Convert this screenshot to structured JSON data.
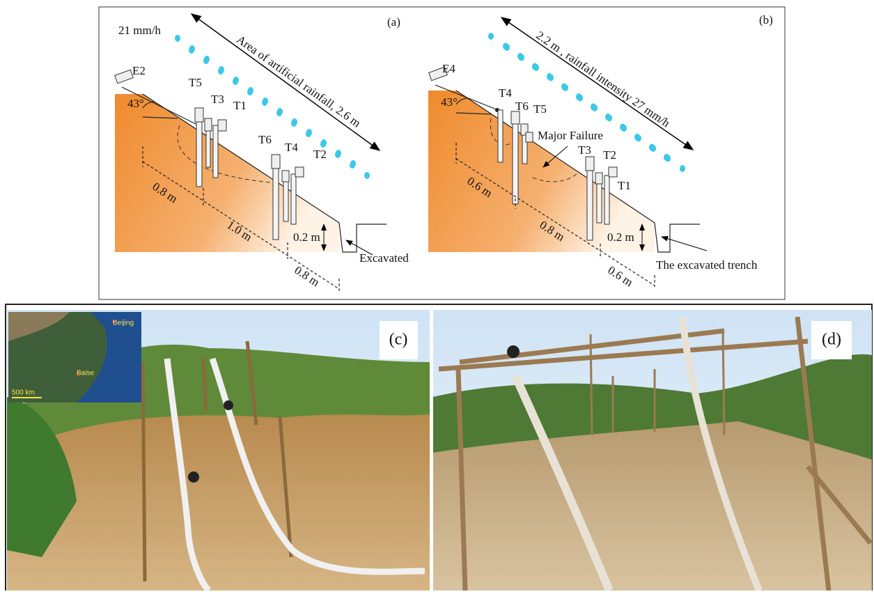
{
  "panel_a": {
    "label": "(a)",
    "intensity": "21 mm/h",
    "rain_area": "Area of artificial rainfall, 2.6 m",
    "sensor": "E2",
    "angle": "43°",
    "tensiometers": [
      "T5",
      "T3",
      "T1",
      "T6",
      "T4",
      "T2"
    ],
    "dimensions": [
      "0.8 m",
      "1.0 m",
      "0.8 m"
    ],
    "depth": "0.2 m",
    "trench": "Excavated"
  },
  "panel_b": {
    "label": "(b)",
    "rain_area": "2.2 m , rainfall intensity 27 mm/h",
    "sensor": "E4",
    "angle": "43°",
    "tensiometers": [
      "T4",
      "T6",
      "T5",
      "T3",
      "T2",
      "T1"
    ],
    "failure": "Major Failure",
    "dimensions": [
      "0.6 m",
      "0.8 m",
      "0.6 m"
    ],
    "depth": "0.2 m",
    "trench": "The excavated trench"
  },
  "panel_c": {
    "label": "(c)",
    "map_labels": [
      "Beijing",
      "Baise"
    ],
    "scale": "500 km"
  },
  "panel_d": {
    "label": "(d)"
  }
}
